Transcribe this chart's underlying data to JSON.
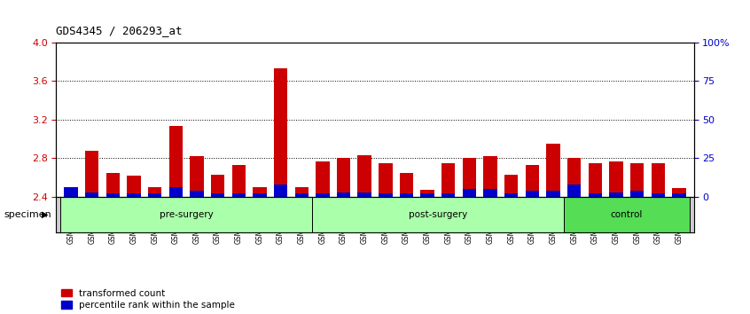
{
  "title": "GDS4345 / 206293_at",
  "samples": [
    "GSM842012",
    "GSM842013",
    "GSM842014",
    "GSM842015",
    "GSM842016",
    "GSM842017",
    "GSM842018",
    "GSM842019",
    "GSM842020",
    "GSM842021",
    "GSM842022",
    "GSM842023",
    "GSM842024",
    "GSM842025",
    "GSM842026",
    "GSM842027",
    "GSM842028",
    "GSM842029",
    "GSM842030",
    "GSM842031",
    "GSM842032",
    "GSM842033",
    "GSM842034",
    "GSM842035",
    "GSM842036",
    "GSM842037",
    "GSM842038",
    "GSM842039",
    "GSM842040",
    "GSM842041"
  ],
  "red_values": [
    2.42,
    2.88,
    2.65,
    2.62,
    2.5,
    3.13,
    2.82,
    2.63,
    2.73,
    2.5,
    3.73,
    2.5,
    2.77,
    2.8,
    2.83,
    2.75,
    2.65,
    2.47,
    2.75,
    2.8,
    2.82,
    2.63,
    2.73,
    2.95,
    2.8,
    2.75,
    2.77,
    2.75,
    2.75,
    2.49
  ],
  "blue_values_pct": [
    6,
    3,
    2,
    2,
    2,
    6,
    4,
    2,
    2,
    2,
    8,
    2,
    2,
    3,
    3,
    2,
    2,
    2,
    2,
    5,
    5,
    2,
    4,
    4,
    8,
    2,
    3,
    4,
    2,
    2
  ],
  "groups": [
    {
      "label": "pre-surgery",
      "start": 0,
      "end": 12,
      "color": "#AAFFAA"
    },
    {
      "label": "post-surgery",
      "start": 12,
      "end": 24,
      "color": "#AAFFAA"
    },
    {
      "label": "control",
      "start": 24,
      "end": 30,
      "color": "#55DD55"
    }
  ],
  "ylim_left": [
    2.4,
    4.0
  ],
  "yticks_left": [
    2.4,
    2.8,
    3.2,
    3.6,
    4.0
  ],
  "ylim_right": [
    0,
    100
  ],
  "yticks_right": [
    0,
    25,
    50,
    75,
    100
  ],
  "yticklabels_right": [
    "0",
    "25",
    "50",
    "75",
    "100%"
  ],
  "bar_color_red": "#CC0000",
  "bar_color_blue": "#0000CC",
  "bar_width": 0.65,
  "grid_color": "#000000",
  "bg_color": "#FFFFFF",
  "plot_bg": "#FFFFFF",
  "tick_label_color_left": "#CC0000",
  "tick_label_color_right": "#0000CC",
  "legend_red": "transformed count",
  "legend_blue": "percentile rank within the sample",
  "xlabel": "specimen",
  "base_value": 2.4,
  "xaxis_bg": "#DDDDDD"
}
